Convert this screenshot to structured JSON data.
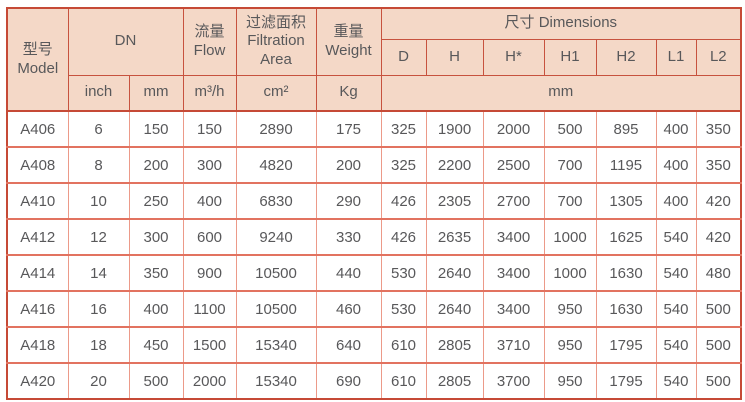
{
  "colors": {
    "header_bg": "#f4d8c7",
    "grid_dark_red": "#c64a36",
    "grid_light_salmon": "#ec9a89",
    "grid_row_line": "#e27360",
    "text": "#58585a"
  },
  "table": {
    "header": {
      "model_cn": "型号",
      "model_en": "Model",
      "dn": "DN",
      "flow_cn": "流量",
      "flow_en": "Flow",
      "filtration_cn": "过滤面积",
      "filtration_en": "Filtration Area",
      "weight_cn": "重量",
      "weight_en": "Weight",
      "dimensions_label": "尺寸 Dimensions",
      "dim_columns": [
        "D",
        "H",
        "H*",
        "H1",
        "H2",
        "L1",
        "L2"
      ],
      "units": {
        "dn_inch": "inch",
        "dn_mm": "mm",
        "flow": "m³/h",
        "area": "cm²",
        "weight": "Kg",
        "dims": "mm"
      }
    },
    "rows": [
      {
        "cells": [
          "A406",
          "6",
          "150",
          "150",
          "2890",
          "175",
          "325",
          "1900",
          "2000",
          "500",
          "895",
          "400",
          "350"
        ]
      },
      {
        "cells": [
          "A408",
          "8",
          "200",
          "300",
          "4820",
          "200",
          "325",
          "2200",
          "2500",
          "700",
          "1195",
          "400",
          "350"
        ]
      },
      {
        "cells": [
          "A410",
          "10",
          "250",
          "400",
          "6830",
          "290",
          "426",
          "2305",
          "2700",
          "700",
          "1305",
          "400",
          "420"
        ]
      },
      {
        "cells": [
          "A412",
          "12",
          "300",
          "600",
          "9240",
          "330",
          "426",
          "2635",
          "3400",
          "1000",
          "1625",
          "540",
          "420"
        ]
      },
      {
        "cells": [
          "A414",
          "14",
          "350",
          "900",
          "10500",
          "440",
          "530",
          "2640",
          "3400",
          "1000",
          "1630",
          "540",
          "480"
        ]
      },
      {
        "cells": [
          "A416",
          "16",
          "400",
          "1100",
          "10500",
          "460",
          "530",
          "2640",
          "3400",
          "950",
          "1630",
          "540",
          "500"
        ]
      },
      {
        "cells": [
          "A418",
          "18",
          "450",
          "1500",
          "15340",
          "640",
          "610",
          "2805",
          "3710",
          "950",
          "1795",
          "540",
          "500"
        ]
      },
      {
        "cells": [
          "A420",
          "20",
          "500",
          "2000",
          "15340",
          "690",
          "610",
          "2805",
          "3700",
          "950",
          "1795",
          "540",
          "500"
        ]
      }
    ]
  }
}
